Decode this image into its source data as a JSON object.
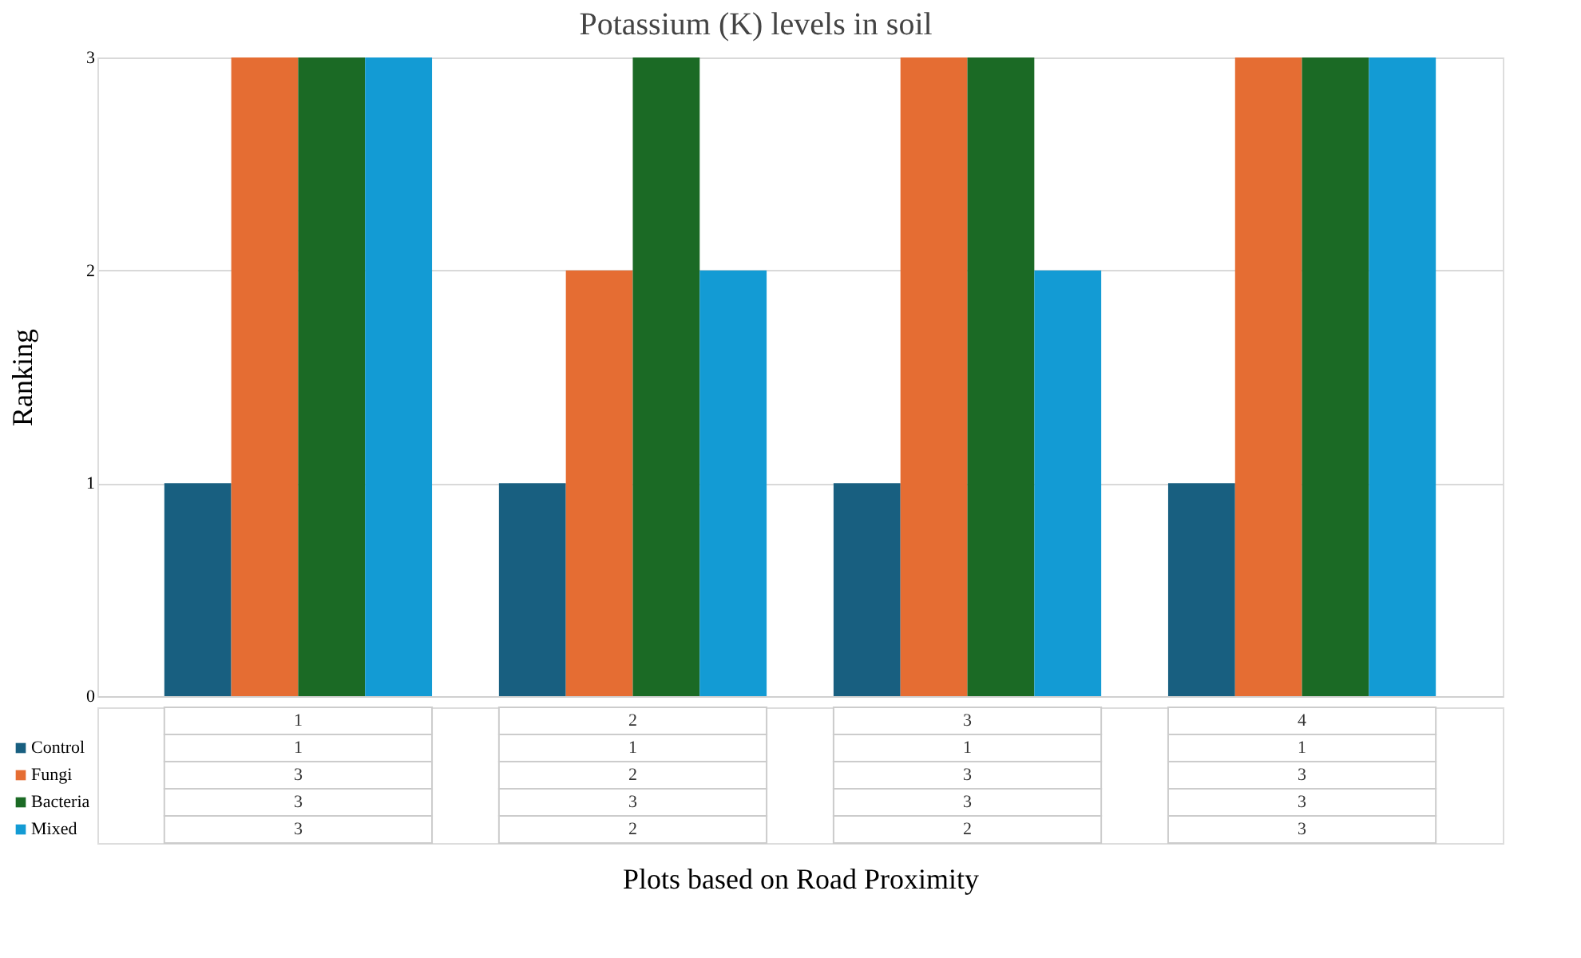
{
  "chart_data": {
    "type": "bar",
    "title": "Potassium (K) levels in soil",
    "xlabel": "Plots based on Road Proximity",
    "ylabel": "Ranking",
    "categories": [
      "1",
      "2",
      "3",
      "4"
    ],
    "series": [
      {
        "name": "Control",
        "color": "#185f80",
        "values": [
          1,
          1,
          1,
          1
        ]
      },
      {
        "name": "Fungi",
        "color": "#e56d33",
        "values": [
          3,
          2,
          3,
          3
        ]
      },
      {
        "name": "Bacteria",
        "color": "#1b6a25",
        "values": [
          3,
          3,
          3,
          3
        ]
      },
      {
        "name": "Mixed",
        "color": "#139bd4",
        "values": [
          3,
          2,
          2,
          3
        ]
      }
    ],
    "ylim": [
      0,
      3
    ],
    "yticks": [
      0,
      1,
      2,
      3
    ],
    "grid": "y",
    "legend": "bottom left",
    "data_labels": true
  }
}
